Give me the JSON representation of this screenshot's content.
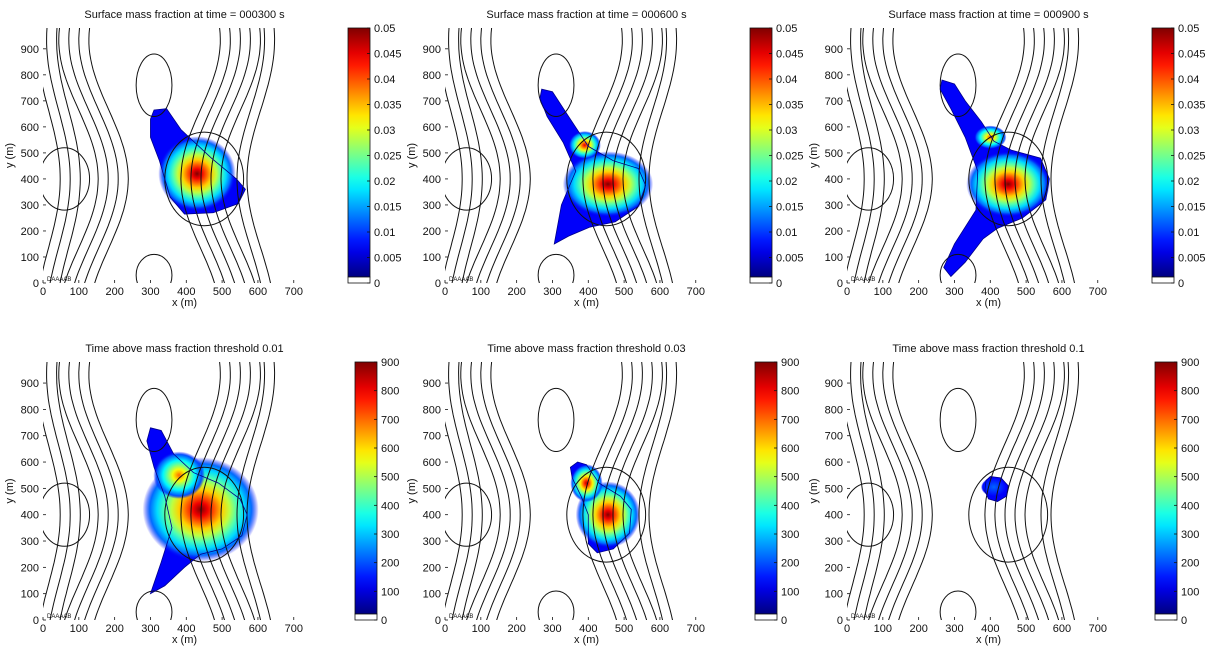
{
  "chart_data": [
    {
      "type": "heatmap",
      "title": "Surface mass fraction at time = 000300 s",
      "xlabel": "x (m)",
      "ylabel": "y (m)",
      "xlim": [
        0,
        790
      ],
      "ylim": [
        0,
        980
      ],
      "xticks": [
        "0",
        "100",
        "200",
        "300",
        "400",
        "500",
        "600",
        "700"
      ],
      "yticks": [
        "0",
        "100",
        "200",
        "300",
        "400",
        "500",
        "600",
        "700",
        "800",
        "900"
      ],
      "colorbar": {
        "min": 0,
        "max": 0.05,
        "ticks": [
          "0",
          "0.005",
          "0.01",
          "0.015",
          "0.02",
          "0.025",
          "0.03",
          "0.035",
          "0.04",
          "0.045",
          "0.05"
        ]
      },
      "plume": {
        "outline": [
          [
            310,
            665
          ],
          [
            345,
            670
          ],
          [
            385,
            590
          ],
          [
            470,
            480
          ],
          [
            540,
            400
          ],
          [
            565,
            360
          ],
          [
            545,
            305
          ],
          [
            475,
            270
          ],
          [
            395,
            265
          ],
          [
            355,
            330
          ],
          [
            325,
            470
          ],
          [
            300,
            560
          ],
          [
            300,
            630
          ]
        ],
        "peaks": [
          {
            "x": 430,
            "y": 420,
            "value": 0.05,
            "rx": 60,
            "ry": 80
          }
        ]
      },
      "inset_label": "DAAAAB"
    },
    {
      "type": "heatmap",
      "title": "Surface mass fraction at time = 000600 s",
      "xlabel": "x (m)",
      "ylabel": "y (m)",
      "xlim": [
        0,
        790
      ],
      "ylim": [
        0,
        980
      ],
      "xticks": [
        "0",
        "100",
        "200",
        "300",
        "400",
        "500",
        "600",
        "700"
      ],
      "yticks": [
        "0",
        "100",
        "200",
        "300",
        "400",
        "500",
        "600",
        "700",
        "800",
        "900"
      ],
      "colorbar": {
        "min": 0,
        "max": 0.05,
        "ticks": [
          "0",
          "0.005",
          "0.01",
          "0.015",
          "0.02",
          "0.025",
          "0.03",
          "0.035",
          "0.04",
          "0.045",
          "0.05"
        ]
      },
      "plume": {
        "outline": [
          [
            270,
            745
          ],
          [
            300,
            735
          ],
          [
            345,
            640
          ],
          [
            400,
            525
          ],
          [
            470,
            470
          ],
          [
            540,
            440
          ],
          [
            560,
            375
          ],
          [
            540,
            295
          ],
          [
            475,
            235
          ],
          [
            405,
            215
          ],
          [
            345,
            180
          ],
          [
            305,
            150
          ],
          [
            325,
            300
          ],
          [
            365,
            430
          ],
          [
            330,
            540
          ],
          [
            285,
            640
          ],
          [
            265,
            710
          ]
        ],
        "peaks": [
          {
            "x": 455,
            "y": 380,
            "value": 0.05,
            "rx": 70,
            "ry": 70
          },
          {
            "x": 390,
            "y": 530,
            "value": 0.045,
            "rx": 25,
            "ry": 30
          }
        ]
      },
      "inset_label": "DAAAAB"
    },
    {
      "type": "heatmap",
      "title": "Surface mass fraction at time = 000900 s",
      "xlabel": "x (m)",
      "ylabel": "y (m)",
      "xlim": [
        0,
        790
      ],
      "ylim": [
        0,
        980
      ],
      "xticks": [
        "0",
        "100",
        "200",
        "300",
        "400",
        "500",
        "600",
        "700"
      ],
      "yticks": [
        "0",
        "100",
        "200",
        "300",
        "400",
        "500",
        "600",
        "700",
        "800",
        "900"
      ],
      "colorbar": {
        "min": 0,
        "max": 0.05,
        "ticks": [
          "0",
          "0.005",
          "0.01",
          "0.015",
          "0.02",
          "0.025",
          "0.03",
          "0.035",
          "0.04",
          "0.045",
          "0.05"
        ]
      },
      "plume": {
        "outline": [
          [
            265,
            780
          ],
          [
            300,
            765
          ],
          [
            330,
            700
          ],
          [
            375,
            620
          ],
          [
            410,
            545
          ],
          [
            460,
            510
          ],
          [
            540,
            480
          ],
          [
            565,
            400
          ],
          [
            555,
            320
          ],
          [
            490,
            250
          ],
          [
            420,
            210
          ],
          [
            380,
            170
          ],
          [
            330,
            80
          ],
          [
            290,
            25
          ],
          [
            270,
            60
          ],
          [
            300,
            150
          ],
          [
            360,
            280
          ],
          [
            365,
            430
          ],
          [
            330,
            560
          ],
          [
            290,
            670
          ],
          [
            260,
            745
          ]
        ],
        "peaks": [
          {
            "x": 450,
            "y": 380,
            "value": 0.05,
            "rx": 65,
            "ry": 70
          },
          {
            "x": 400,
            "y": 560,
            "value": 0.04,
            "rx": 25,
            "ry": 25
          }
        ]
      },
      "inset_label": "DAAAAB"
    },
    {
      "type": "heatmap",
      "title": "Time above mass fraction threshold 0.01",
      "xlabel": "x (m)",
      "ylabel": "y (m)",
      "xlim": [
        0,
        790
      ],
      "ylim": [
        0,
        980
      ],
      "xticks": [
        "0",
        "100",
        "200",
        "300",
        "400",
        "500",
        "600",
        "700"
      ],
      "yticks": [
        "0",
        "100",
        "200",
        "300",
        "400",
        "500",
        "600",
        "700",
        "800",
        "900"
      ],
      "colorbar": {
        "min": 0,
        "max": 900,
        "ticks": [
          "0",
          "100",
          "200",
          "300",
          "400",
          "500",
          "600",
          "700",
          "800",
          "900"
        ]
      },
      "plume": {
        "outline": [
          [
            300,
            730
          ],
          [
            330,
            720
          ],
          [
            365,
            630
          ],
          [
            420,
            560
          ],
          [
            490,
            520
          ],
          [
            550,
            460
          ],
          [
            570,
            400
          ],
          [
            555,
            320
          ],
          [
            500,
            270
          ],
          [
            440,
            250
          ],
          [
            395,
            200
          ],
          [
            340,
            130
          ],
          [
            300,
            100
          ],
          [
            330,
            220
          ],
          [
            360,
            350
          ],
          [
            340,
            470
          ],
          [
            310,
            580
          ],
          [
            290,
            680
          ]
        ],
        "peaks": [
          {
            "x": 440,
            "y": 420,
            "value": 900,
            "rx": 90,
            "ry": 110
          },
          {
            "x": 380,
            "y": 550,
            "value": 700,
            "rx": 40,
            "ry": 50
          }
        ]
      },
      "inset_label": "DAAAAB"
    },
    {
      "type": "heatmap",
      "title": "Time above mass fraction threshold 0.03",
      "xlabel": "x (m)",
      "ylabel": "y (m)",
      "xlim": [
        0,
        790
      ],
      "ylim": [
        0,
        980
      ],
      "xticks": [
        "0",
        "100",
        "200",
        "300",
        "400",
        "500",
        "600",
        "700"
      ],
      "yticks": [
        "0",
        "100",
        "200",
        "300",
        "400",
        "500",
        "600",
        "700",
        "800",
        "900"
      ],
      "colorbar": {
        "min": 0,
        "max": 900,
        "ticks": [
          "0",
          "100",
          "200",
          "300",
          "400",
          "500",
          "600",
          "700",
          "800",
          "900"
        ]
      },
      "plume": {
        "outline": [
          [
            370,
            600
          ],
          [
            395,
            590
          ],
          [
            430,
            520
          ],
          [
            490,
            470
          ],
          [
            520,
            420
          ],
          [
            515,
            330
          ],
          [
            470,
            270
          ],
          [
            425,
            255
          ],
          [
            400,
            290
          ],
          [
            400,
            400
          ],
          [
            380,
            470
          ],
          [
            355,
            540
          ],
          [
            350,
            580
          ]
        ],
        "peaks": [
          {
            "x": 455,
            "y": 400,
            "value": 900,
            "rx": 50,
            "ry": 70
          },
          {
            "x": 395,
            "y": 520,
            "value": 850,
            "rx": 25,
            "ry": 40
          }
        ]
      },
      "inset_label": "DAAAAB"
    },
    {
      "type": "heatmap",
      "title": "Time above mass fraction threshold 0.1",
      "xlabel": "x (m)",
      "ylabel": "y (m)",
      "xlim": [
        0,
        790
      ],
      "ylim": [
        0,
        980
      ],
      "xticks": [
        "0",
        "100",
        "200",
        "300",
        "400",
        "500",
        "600",
        "700"
      ],
      "yticks": [
        "0",
        "100",
        "200",
        "300",
        "400",
        "500",
        "600",
        "700",
        "800",
        "900"
      ],
      "colorbar": {
        "min": 0,
        "max": 900,
        "ticks": [
          "0",
          "100",
          "200",
          "300",
          "400",
          "500",
          "600",
          "700",
          "800",
          "900"
        ]
      },
      "plume": {
        "outline": [
          [
            400,
            545
          ],
          [
            430,
            540
          ],
          [
            450,
            510
          ],
          [
            445,
            470
          ],
          [
            420,
            450
          ],
          [
            395,
            460
          ],
          [
            385,
            490
          ],
          [
            388,
            530
          ]
        ],
        "peaks": [
          {
            "x": 410,
            "y": 505,
            "value": 200,
            "rx": 20,
            "ry": 20
          }
        ]
      },
      "inset_label": "DAAAAB"
    }
  ]
}
